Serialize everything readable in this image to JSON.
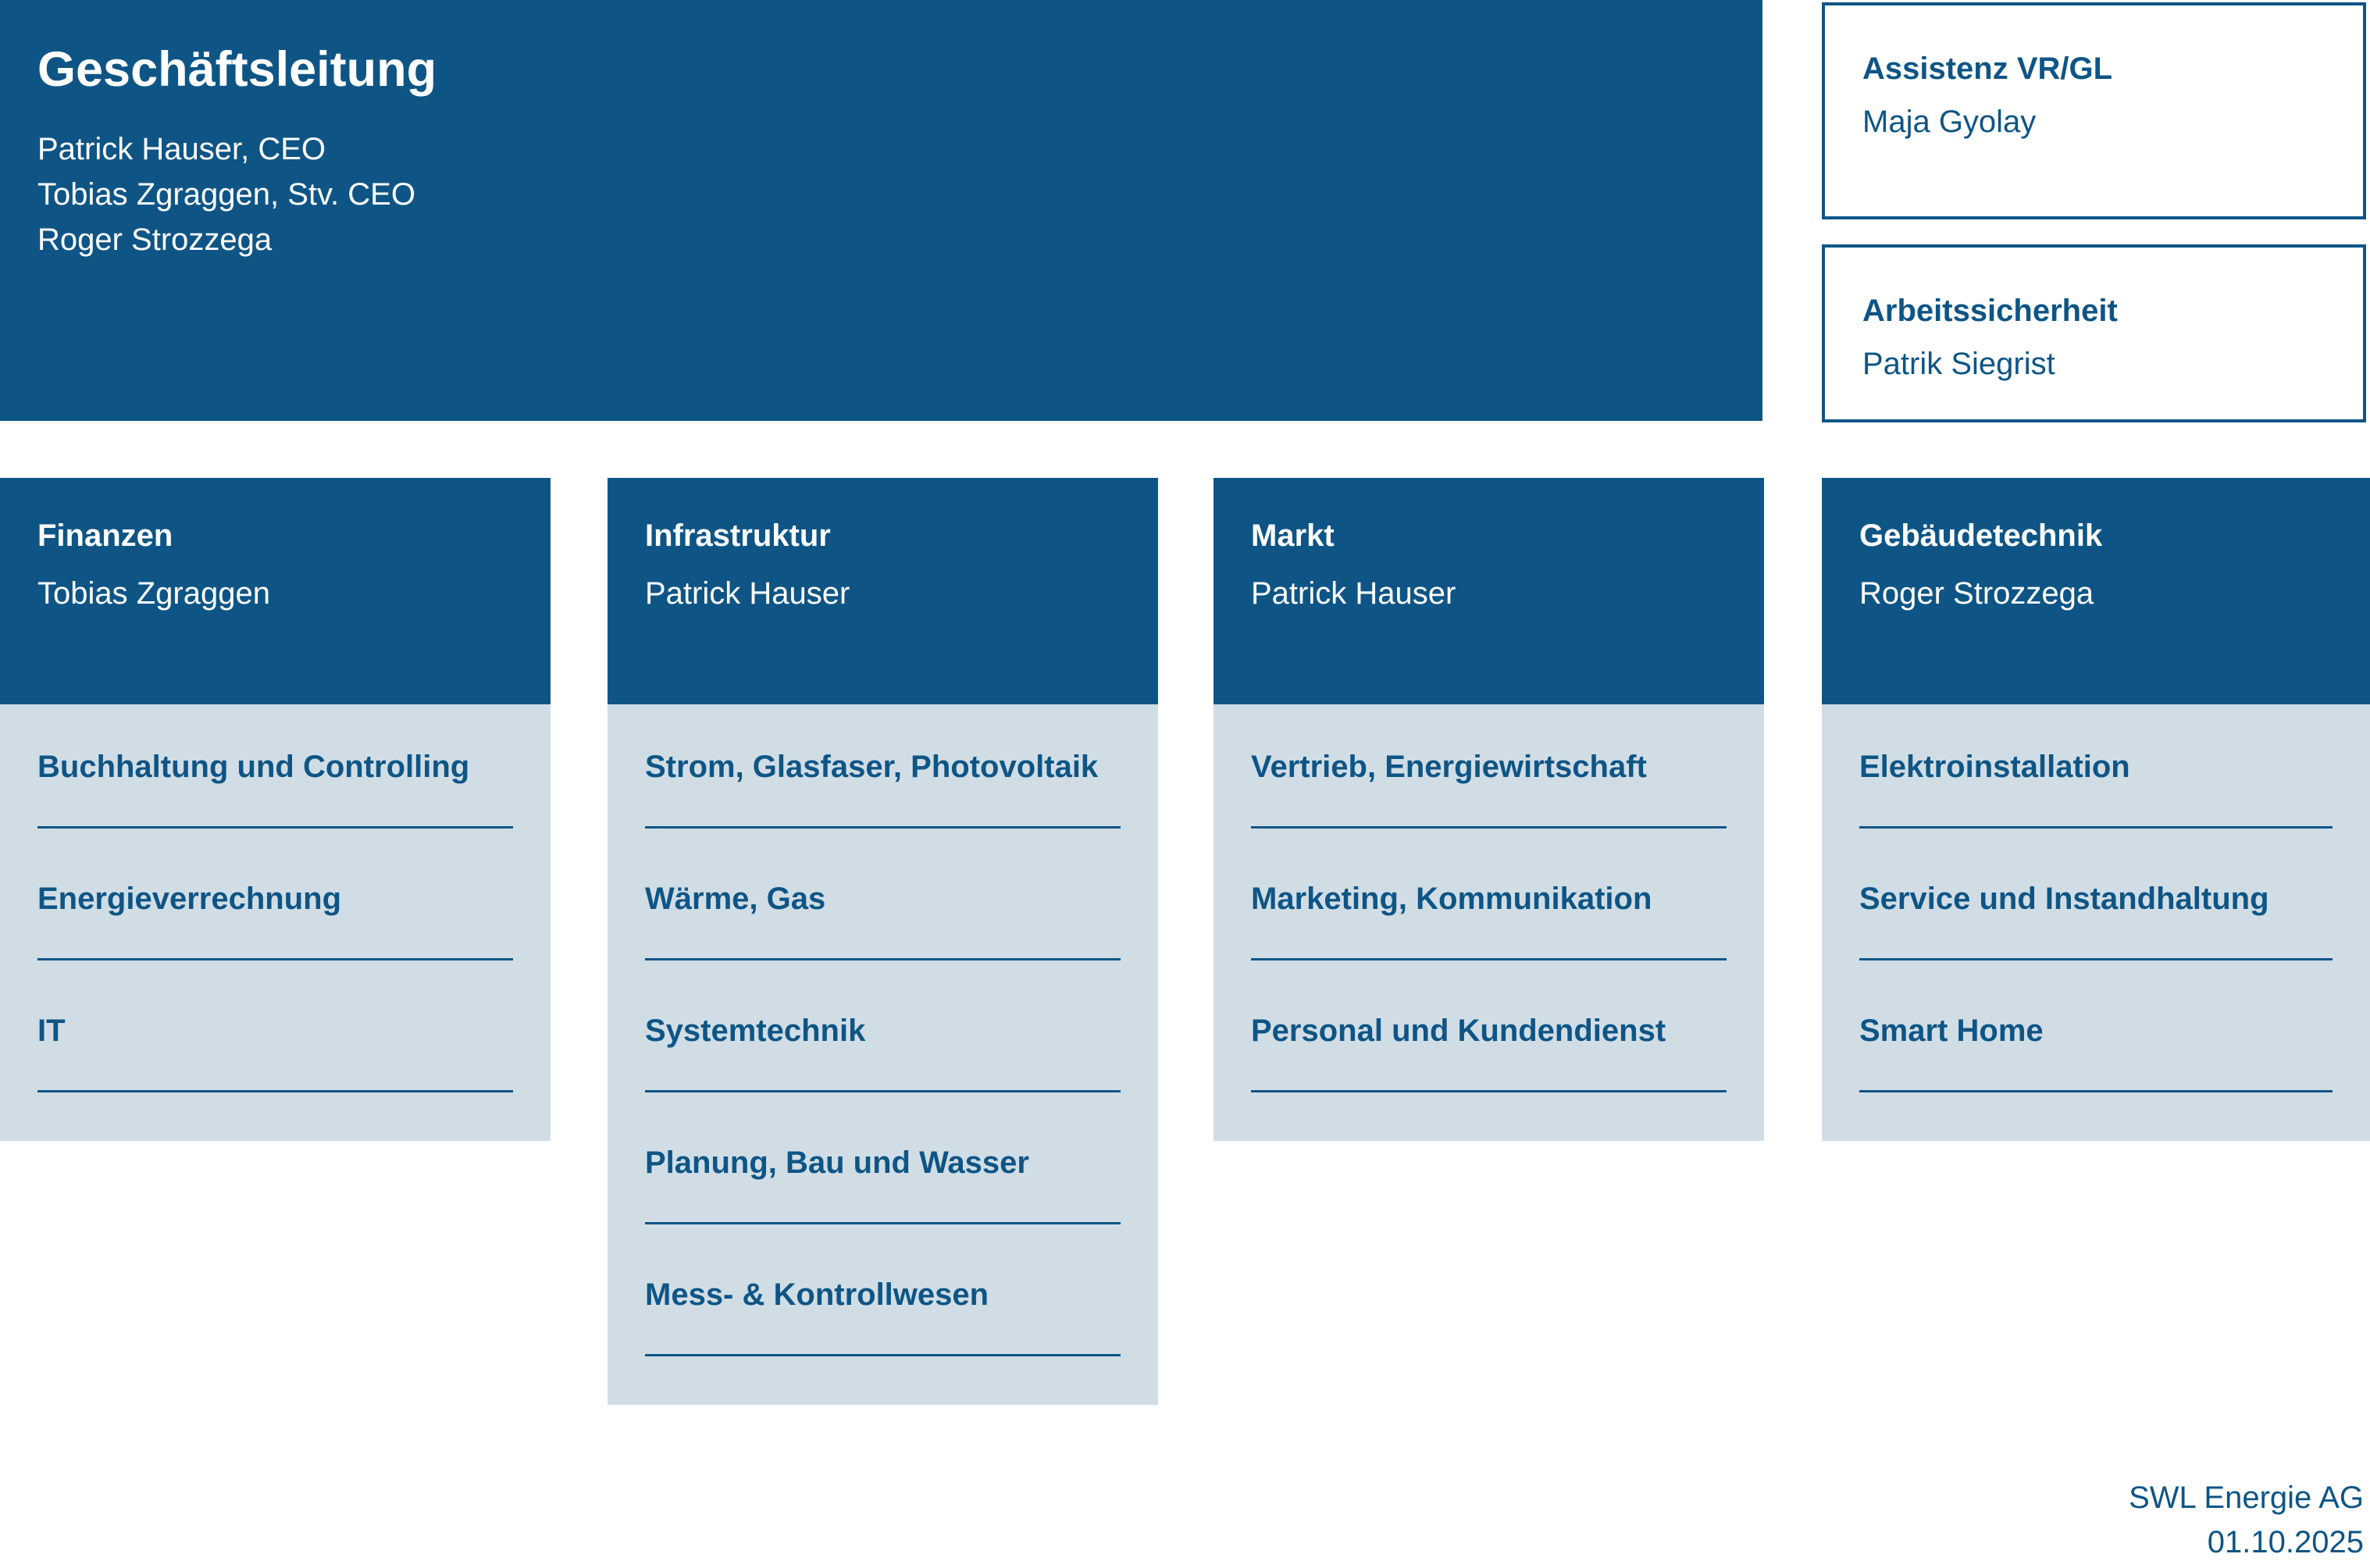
{
  "colors": {
    "primary_blue": "#0E5586",
    "body_light_blue": "#D1DDE5",
    "white": "#FFFFFF"
  },
  "executive": {
    "title": "Geschäftsleitung",
    "members": [
      "Patrick Hauser, CEO",
      "Tobias Zgraggen, Stv. CEO",
      "Roger Strozzega"
    ]
  },
  "staff_boxes": [
    {
      "title": "Assistenz VR/GL",
      "person": "Maja Gyolay"
    },
    {
      "title": "Arbeitssicherheit",
      "person": "Patrik Siegrist"
    }
  ],
  "departments": [
    {
      "title": "Finanzen",
      "lead": "Tobias Zgraggen",
      "units": [
        "Buchhaltung und Controlling",
        "Energieverrechnung",
        "IT"
      ]
    },
    {
      "title": "Infrastruktur",
      "lead": "Patrick Hauser",
      "units": [
        "Strom, Glasfaser, Photovoltaik",
        "Wärme, Gas",
        "Systemtechnik",
        "Planung, Bau und Wasser",
        "Mess- & Kontrollwesen"
      ]
    },
    {
      "title": "Markt",
      "lead": "Patrick Hauser",
      "units": [
        "Vertrieb, Energiewirtschaft",
        "Marketing, Kommunikation",
        "Personal und Kundendienst"
      ]
    },
    {
      "title": "Gebäudetechnik",
      "lead": "Roger Strozzega",
      "units": [
        "Elektroinstallation",
        "Service und Instandhaltung",
        "Smart Home"
      ]
    }
  ],
  "footer": {
    "company": "SWL Energie AG",
    "date": "01.10.2025"
  }
}
